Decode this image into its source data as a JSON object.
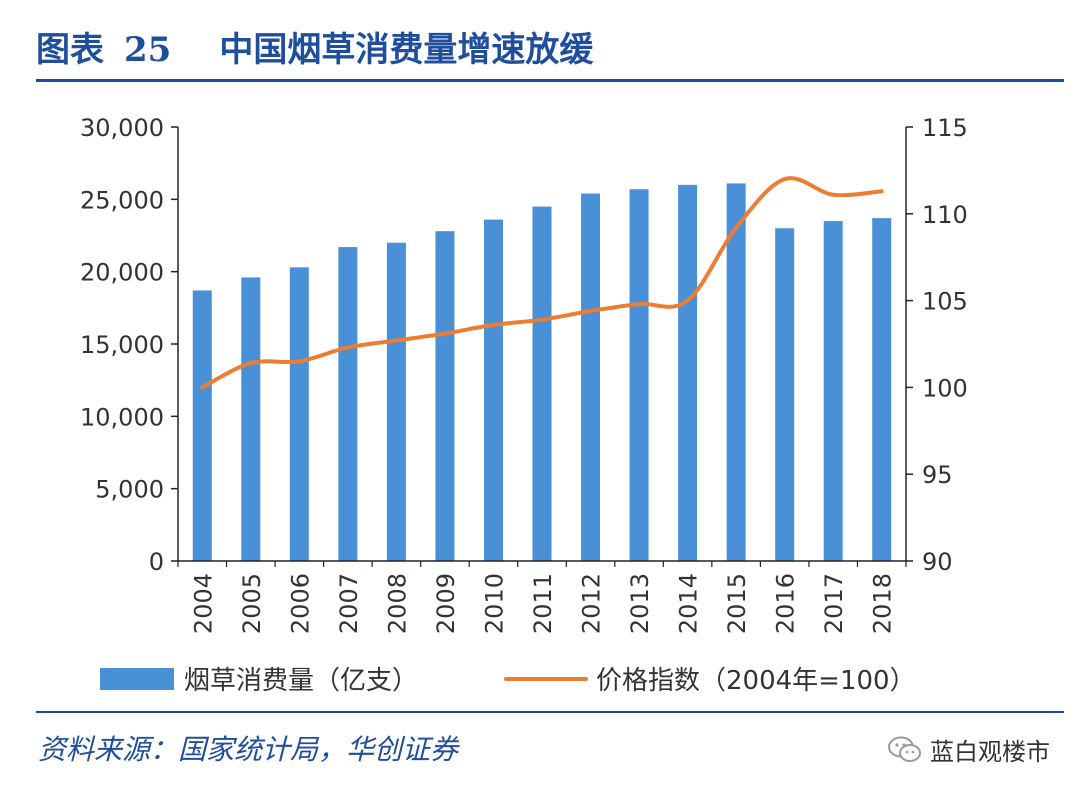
{
  "title": {
    "prefix": "图表",
    "number": "25",
    "text": "中国烟草消费量增速放缓"
  },
  "source": "资料来源：国家统计局，华创证券",
  "watermark": {
    "icon": "wechat-icon",
    "text": "蓝白观楼市"
  },
  "chart_data": {
    "type": "bar",
    "categories": [
      "2004",
      "2005",
      "2006",
      "2007",
      "2008",
      "2009",
      "2010",
      "2011",
      "2012",
      "2013",
      "2014",
      "2015",
      "2016",
      "2017",
      "2018"
    ],
    "series": [
      {
        "name": "烟草消费量（亿支）",
        "type": "bar",
        "axis": "left",
        "color": "#4a90d6",
        "values": [
          18700,
          19600,
          20300,
          21700,
          22000,
          22800,
          23600,
          24500,
          25400,
          25700,
          26000,
          26100,
          23000,
          23500,
          23700
        ]
      },
      {
        "name": "价格指数（2004年=100）",
        "type": "line",
        "axis": "right",
        "color": "#ee7d31",
        "values": [
          100.0,
          101.4,
          101.5,
          102.3,
          102.7,
          103.1,
          103.6,
          103.9,
          104.4,
          104.8,
          105.0,
          109.2,
          112.0,
          111.1,
          111.3
        ]
      }
    ],
    "y_left": {
      "range": [
        0,
        30000
      ],
      "ticks": [
        "0",
        "5,000",
        "10,000",
        "15,000",
        "20,000",
        "25,000",
        "30,000"
      ]
    },
    "y_right": {
      "range": [
        90,
        115
      ],
      "ticks": [
        "90",
        "95",
        "100",
        "105",
        "110",
        "115"
      ]
    },
    "grid": false,
    "legend_position": "bottom"
  }
}
